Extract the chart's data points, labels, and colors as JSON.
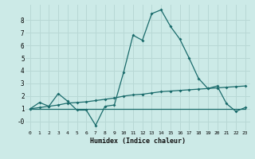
{
  "xlabel": "Humidex (Indice chaleur)",
  "background_color": "#cceae7",
  "grid_color": "#b8d8d5",
  "line_color": "#1a6b6b",
  "xlim": [
    -0.5,
    23.5
  ],
  "ylim": [
    -0.7,
    9.2
  ],
  "xticks": [
    0,
    1,
    2,
    3,
    4,
    5,
    6,
    7,
    8,
    9,
    10,
    11,
    12,
    13,
    14,
    15,
    16,
    17,
    18,
    19,
    20,
    21,
    22,
    23
  ],
  "yticks": [
    0,
    1,
    2,
    3,
    4,
    5,
    6,
    7,
    8
  ],
  "ytick_labels": [
    "-0",
    "1",
    "2",
    "3",
    "4",
    "5",
    "6",
    "7",
    "8"
  ],
  "line1_x": [
    0,
    1,
    2,
    3,
    4,
    5,
    6,
    7,
    8,
    9,
    10,
    11,
    12,
    13,
    14,
    15,
    16,
    17,
    18,
    19,
    20,
    21,
    22,
    23
  ],
  "line1_y": [
    1.0,
    1.5,
    1.2,
    2.2,
    1.6,
    0.9,
    0.9,
    -0.3,
    1.2,
    1.3,
    3.9,
    6.8,
    6.4,
    8.5,
    8.8,
    7.5,
    6.5,
    5.0,
    3.4,
    2.6,
    2.8,
    1.4,
    0.8,
    1.1
  ],
  "line2_x": [
    0,
    1,
    2,
    3,
    4,
    5,
    6,
    7,
    8,
    9,
    10,
    11,
    12,
    13,
    14,
    15,
    16,
    17,
    18,
    19,
    20,
    21,
    22,
    23
  ],
  "line2_y": [
    1.0,
    1.1,
    1.2,
    1.3,
    1.45,
    1.5,
    1.55,
    1.65,
    1.75,
    1.85,
    2.0,
    2.1,
    2.15,
    2.25,
    2.35,
    2.4,
    2.45,
    2.5,
    2.55,
    2.6,
    2.65,
    2.7,
    2.75,
    2.8
  ],
  "line3_x": [
    0,
    9,
    20,
    23
  ],
  "line3_y": [
    1.0,
    1.0,
    1.0,
    1.0
  ]
}
